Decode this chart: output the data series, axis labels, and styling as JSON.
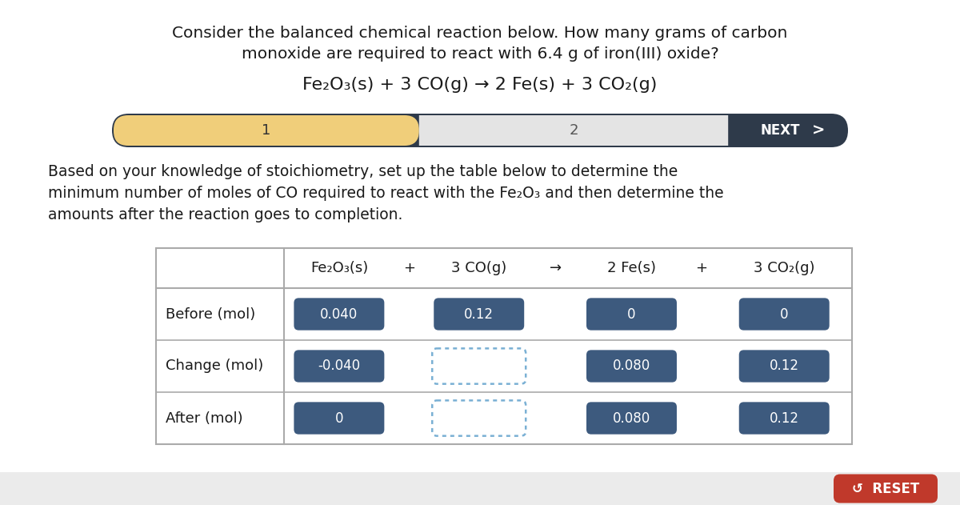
{
  "bg_color": "#ebebeb",
  "main_bg": "#ffffff",
  "title_line1": "Consider the balanced chemical reaction below. How many grams of carbon",
  "title_line2": "monoxide are required to react with 6.4 g of iron(III) oxide?",
  "equation": "Fe₂O₃(s) + 3 CO(g) → 2 Fe(s) + 3 CO₂(g)",
  "nav_bar_bg": "#2e3a4a",
  "nav_step1_bg": "#f0ce7a",
  "nav_step1_text": "1",
  "nav_step2_bg": "#e4e4e4",
  "nav_step2_text": "2",
  "nav_next_text": "NEXT",
  "body_text_line1": "Based on your knowledge of stoichiometry, set up the table below to determine the",
  "body_text_line2": "minimum number of moles of CO required to react with the Fe₂O₃ and then determine the",
  "body_text_line3": "amounts after the reaction goes to completion.",
  "row_labels": [
    "Before (mol)",
    "Change (mol)",
    "After (mol)"
  ],
  "header_texts": [
    "Fe₂O₃(s)",
    "+",
    "3 CO(g)",
    "→",
    "2 Fe(s)",
    "+",
    "3 CO₂(g)"
  ],
  "cell_filled_color": "#3d5a7e",
  "cell_filled_text_color": "#ffffff",
  "cell_dotted_border_color": "#7ab0d4",
  "cell_data": [
    [
      "0.040",
      "0.12",
      "0",
      "0"
    ],
    [
      "-0.040",
      "",
      "0.080",
      "0.12"
    ],
    [
      "0",
      "",
      "0.080",
      "0.12"
    ]
  ],
  "cell_dotted": [
    [
      false,
      false,
      false,
      false
    ],
    [
      false,
      true,
      false,
      false
    ],
    [
      false,
      true,
      false,
      false
    ]
  ],
  "reset_btn_color": "#c0392b",
  "reset_btn_text": "RESET",
  "reset_icon": "↺"
}
